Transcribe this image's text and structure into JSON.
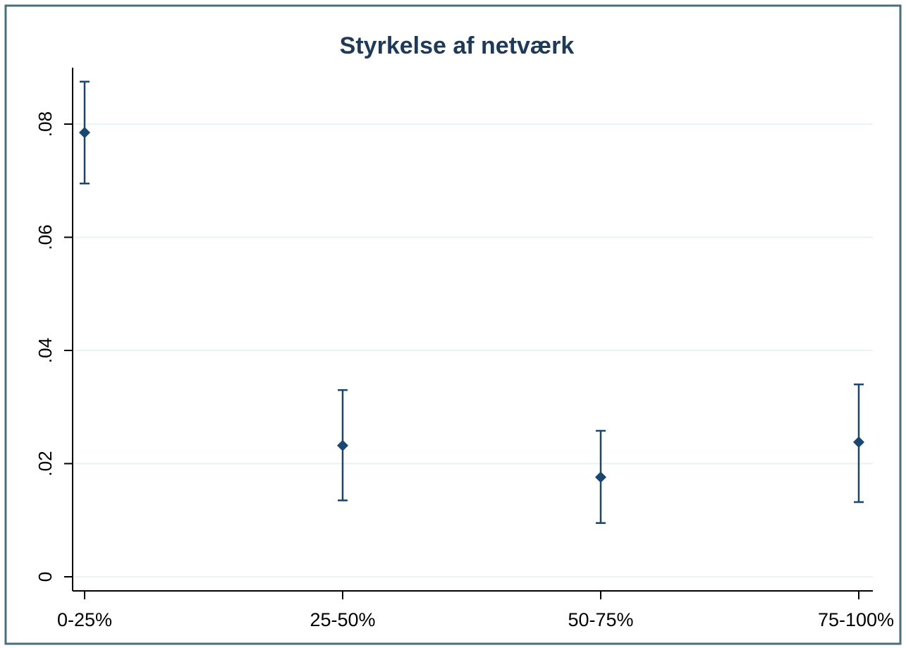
{
  "chart_data": {
    "type": "scatter",
    "title": "Styrkelse af netværk",
    "xlabel": "",
    "ylabel": "",
    "categories": [
      "0-25%",
      "25-50%",
      "50-75%",
      "75-100%"
    ],
    "series": [
      {
        "values": [
          0.0785,
          0.0232,
          0.0176,
          0.0238
        ],
        "ci_lower": [
          0.0695,
          0.0135,
          0.0095,
          0.0132
        ],
        "ci_upper": [
          0.0875,
          0.033,
          0.0258,
          0.034
        ]
      }
    ],
    "yticks": [
      0,
      0.02,
      0.04,
      0.06,
      0.08
    ],
    "ytick_labels": [
      "0",
      ".02",
      ".04",
      ".06",
      ".08"
    ],
    "ylim": [
      0,
      0.09
    ],
    "grid": true,
    "colors": {
      "marker": "#1a476f",
      "grid": "#eaf2f3",
      "axis": "#000000",
      "frame": "#4a6f7a",
      "title": "#1e3a57",
      "background": "#ffffff"
    }
  }
}
